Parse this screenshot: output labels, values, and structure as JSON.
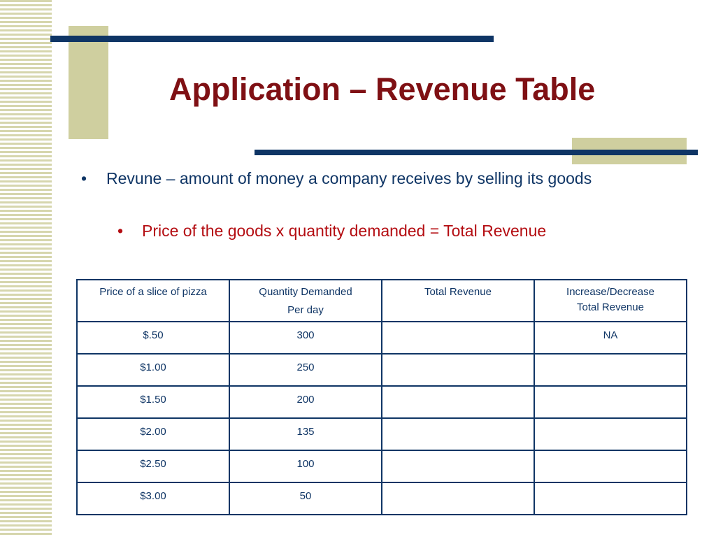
{
  "slide": {
    "title": "Application – Revenue Table",
    "bullets": [
      {
        "marker": "•",
        "text": "Revune – amount of money a company receives by selling its goods",
        "color": "#0f3565"
      },
      {
        "marker": "•",
        "text": "Price of the goods x quantity demanded = Total Revenue",
        "color": "#b40d12"
      }
    ]
  },
  "table": {
    "headers": [
      {
        "line1": "Price of a slice of pizza",
        "line2": ""
      },
      {
        "line1": "Quantity Demanded",
        "line2": "Per day"
      },
      {
        "line1": "Total Revenue",
        "line2": ""
      },
      {
        "line1": "Increase/Decrease",
        "line2": "Total Revenue"
      }
    ],
    "rows": [
      {
        "price": "$.50",
        "quantity": "300",
        "total": "",
        "change": "NA",
        "price_red": true,
        "quantity_red": false
      },
      {
        "price": "$1.00",
        "quantity": "250",
        "total": "",
        "change": "",
        "price_red": false,
        "quantity_red": true
      },
      {
        "price": "$1.50",
        "quantity": "200",
        "total": "",
        "change": "",
        "price_red": true,
        "quantity_red": false
      },
      {
        "price": "$2.00",
        "quantity": "135",
        "total": "",
        "change": "",
        "price_red": false,
        "quantity_red": true
      },
      {
        "price": "$2.50",
        "quantity": "100",
        "total": "",
        "change": "",
        "price_red": true,
        "quantity_red": false
      },
      {
        "price": "$3.00",
        "quantity": "50",
        "total": "",
        "change": "",
        "price_red": false,
        "quantity_red": true
      }
    ]
  },
  "colors": {
    "title": "#7f1014",
    "navy": "#0f3565",
    "accent_red": "#b40d12",
    "tan": "#cfcf9f"
  }
}
